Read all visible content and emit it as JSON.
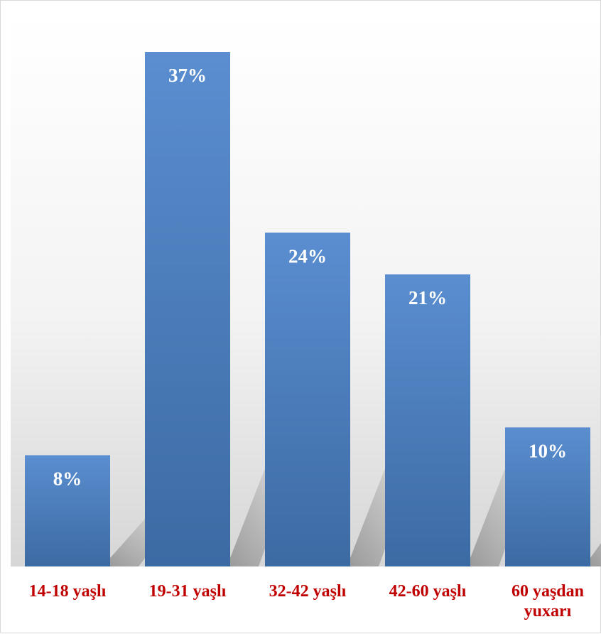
{
  "chart_data": {
    "type": "bar",
    "categories": [
      "14-18 yaşlı",
      "19-31 yaşlı",
      "32-42 yaşlı",
      "42-60 yaşlı",
      "60 yaşdan yuxarı"
    ],
    "values": [
      8,
      37,
      24,
      21,
      10
    ],
    "value_labels": [
      "8%",
      "37%",
      "24%",
      "21%",
      "10%"
    ],
    "unit": "%",
    "title": "",
    "xlabel": "",
    "ylabel": "",
    "ylim": [
      0,
      37
    ],
    "grid": false,
    "legend": "none",
    "colors": {
      "bar": "#4a7ebb",
      "bar_light": "#5a8ed0",
      "bar_dark": "#3c6aa3",
      "category_text": "#c00000",
      "value_text": "#ffffff"
    }
  }
}
